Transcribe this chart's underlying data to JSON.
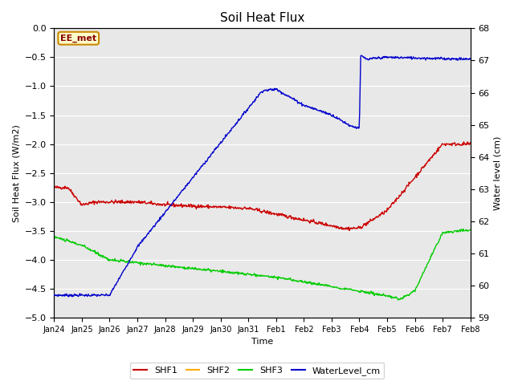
{
  "title": "Soil Heat Flux",
  "xlabel": "Time",
  "ylabel_left": "Soil Heat Flux (W/m2)",
  "ylabel_right": "Water level (cm)",
  "ylim_left": [
    -5.0,
    0.0
  ],
  "ylim_right": [
    59.0,
    68.0
  ],
  "background_color": "#e8e8e8",
  "annotation_text": "EE_met",
  "annotation_bg": "#ffffcc",
  "annotation_border": "#cc8800",
  "annotation_text_color": "#880000",
  "x_ticks": [
    "Jan 24",
    "Jan 25",
    "Jan 26",
    "Jan 27",
    "Jan 28",
    "Jan 29",
    "Jan 30",
    "Jan 31",
    "Feb 1",
    "Feb 2",
    "Feb 3",
    "Feb 4",
    "Feb 5",
    "Feb 6",
    "Feb 7",
    "Feb 8"
  ],
  "shf1_color": "#cc0000",
  "shf2_color": "#ffaa00",
  "shf3_color": "#00cc00",
  "wl_color": "#0000cc",
  "grid_color": "#ffffff",
  "title_fontsize": 11
}
